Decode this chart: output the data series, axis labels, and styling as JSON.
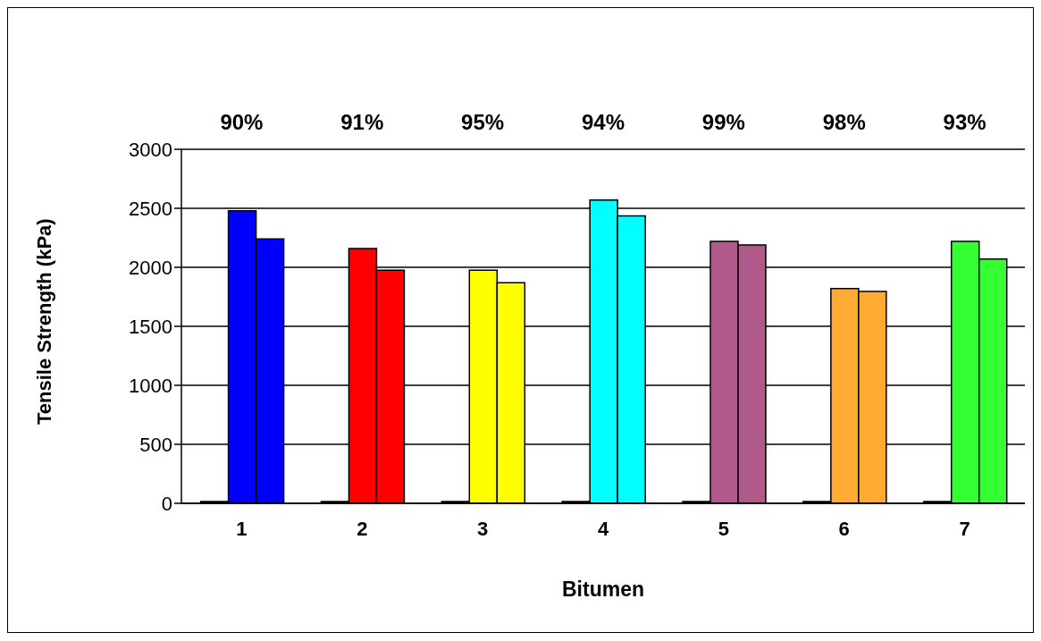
{
  "chart_data": {
    "type": "bar",
    "xlabel": "Bitumen",
    "ylabel": "Tensile Strength (kPa)",
    "categories": [
      "1",
      "2",
      "3",
      "4",
      "5",
      "6",
      "7"
    ],
    "series": [
      {
        "colors": [
          "#000000",
          "#000000",
          "#000000",
          "#000000",
          "#000000",
          "#000000",
          "#000000"
        ],
        "values": [
          15,
          15,
          15,
          15,
          15,
          15,
          15
        ]
      },
      {
        "colors": [
          "#0000ff",
          "#ff0000",
          "#ffff00",
          "#00ffff",
          "#b05a8c",
          "#ffaa33",
          "#33ff33"
        ],
        "values": [
          2480,
          2160,
          1975,
          2570,
          2220,
          1820,
          2220
        ]
      },
      {
        "colors": [
          "#0000ff",
          "#ff0000",
          "#ffff00",
          "#00ffff",
          "#b05a8c",
          "#ffaa33",
          "#33ff33"
        ],
        "values": [
          2240,
          1975,
          1870,
          2435,
          2190,
          1795,
          2070
        ]
      }
    ],
    "ylim": [
      0,
      3000
    ],
    "yticks": [
      0,
      500,
      1000,
      1500,
      2000,
      2500,
      3000
    ],
    "grid": "y",
    "legend": false,
    "annotations": [
      "90%",
      "91%",
      "95%",
      "94%",
      "99%",
      "98%",
      "93%"
    ]
  }
}
